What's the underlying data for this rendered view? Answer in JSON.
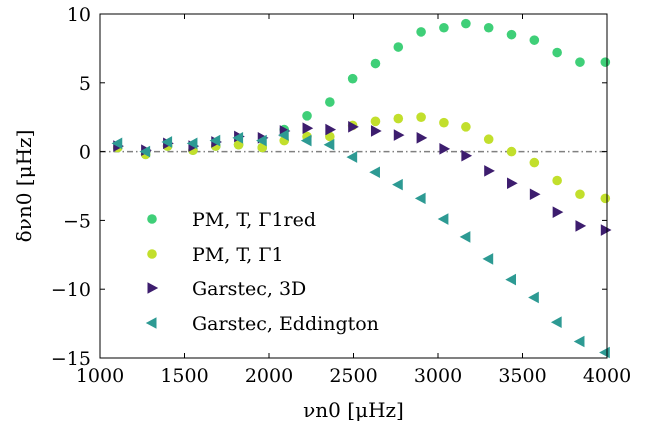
{
  "chart_data": {
    "type": "scatter",
    "xlabel": "νn0 [μHz]",
    "ylabel": "δνn0 [μHz]",
    "xlim": [
      1000,
      4000
    ],
    "ylim": [
      -15,
      10
    ],
    "xticks": [
      "1000",
      "1500",
      "2000",
      "2500",
      "3000",
      "3500",
      "4000"
    ],
    "yticks": [
      "10",
      "5",
      "0",
      "−5",
      "−10",
      "−15"
    ],
    "reference_line": {
      "y": 0,
      "style": "dash-dot",
      "color": "#808080"
    },
    "grid": false,
    "legend_position": "lower-left",
    "series": [
      {
        "name": "PM, T, Γ1red",
        "marker": "circle",
        "color": "#3fcf78",
        "x": [
          1105,
          1270,
          1400,
          1550,
          1685,
          1820,
          1960,
          2090,
          2225,
          2360,
          2495,
          2630,
          2765,
          2900,
          3035,
          3165,
          3300,
          3435,
          3570,
          3705,
          3840,
          3990
        ],
        "y": [
          0.3,
          -0.2,
          0.4,
          0.1,
          0.4,
          0.5,
          0.3,
          1.6,
          2.6,
          3.6,
          5.3,
          6.4,
          7.6,
          8.7,
          9.0,
          9.3,
          9.0,
          8.5,
          8.1,
          7.2,
          6.5,
          6.5
        ]
      },
      {
        "name": "PM, T, Γ1",
        "marker": "circle",
        "color": "#c2df2c",
        "x": [
          1105,
          1270,
          1400,
          1550,
          1685,
          1820,
          1960,
          2090,
          2225,
          2360,
          2495,
          2630,
          2765,
          2900,
          3035,
          3165,
          3300,
          3435,
          3570,
          3705,
          3840,
          3990
        ],
        "y": [
          0.3,
          -0.2,
          0.4,
          0.1,
          0.4,
          0.5,
          0.3,
          0.8,
          1.1,
          1.1,
          1.9,
          2.2,
          2.4,
          2.5,
          2.1,
          1.8,
          0.9,
          0.0,
          -0.8,
          -2.1,
          -3.1,
          -3.4
        ]
      },
      {
        "name": "Garstec, 3D",
        "marker": "triangle-right",
        "color": "#3d1d6e",
        "x": [
          1105,
          1270,
          1400,
          1550,
          1685,
          1820,
          1960,
          2090,
          2225,
          2360,
          2495,
          2630,
          2765,
          2900,
          3035,
          3165,
          3300,
          3435,
          3570,
          3705,
          3840,
          3990
        ],
        "y": [
          0.4,
          0.1,
          0.6,
          0.4,
          0.7,
          1.1,
          1.0,
          1.5,
          1.7,
          1.6,
          1.8,
          1.5,
          1.2,
          1.0,
          0.2,
          -0.3,
          -1.4,
          -2.3,
          -3.1,
          -4.4,
          -5.4,
          -5.7
        ]
      },
      {
        "name": "Garstec, Eddington",
        "marker": "triangle-left",
        "color": "#2d9a93",
        "x": [
          1105,
          1270,
          1400,
          1550,
          1685,
          1820,
          1960,
          2090,
          2225,
          2360,
          2495,
          2630,
          2765,
          2900,
          3035,
          3165,
          3300,
          3435,
          3570,
          3705,
          3840,
          3990
        ],
        "y": [
          0.6,
          0.0,
          0.7,
          0.6,
          0.8,
          1.0,
          0.8,
          1.2,
          0.8,
          0.5,
          -0.4,
          -1.5,
          -2.4,
          -3.4,
          -4.9,
          -6.2,
          -7.8,
          -9.3,
          -10.6,
          -12.4,
          -13.8,
          -14.6
        ]
      }
    ]
  }
}
